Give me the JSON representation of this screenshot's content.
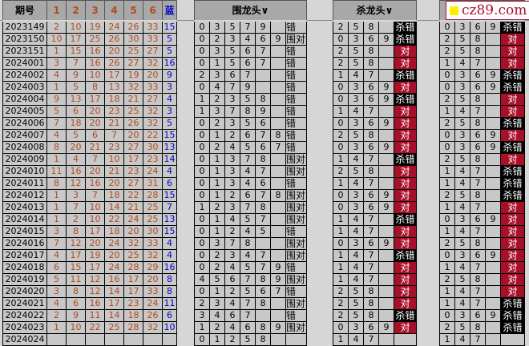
{
  "draw_table": {
    "headers": [
      "期号",
      "1",
      "2",
      "3",
      "4",
      "5",
      "6",
      "蓝"
    ],
    "rows": [
      [
        "2023149",
        "2",
        "10",
        "19",
        "24",
        "26",
        "33",
        "15"
      ],
      [
        "2023150",
        "10",
        "17",
        "25",
        "26",
        "30",
        "33",
        "5"
      ],
      [
        "2023151",
        "1",
        "15",
        "16",
        "20",
        "25",
        "27",
        "5"
      ],
      [
        "2024001",
        "3",
        "7",
        "16",
        "26",
        "27",
        "32",
        "16"
      ],
      [
        "2024002",
        "4",
        "9",
        "10",
        "17",
        "19",
        "20",
        "9"
      ],
      [
        "2024003",
        "1",
        "5",
        "8",
        "13",
        "32",
        "33",
        "3"
      ],
      [
        "2024004",
        "9",
        "13",
        "17",
        "18",
        "21",
        "27",
        "4"
      ],
      [
        "2024005",
        "5",
        "6",
        "20",
        "23",
        "25",
        "32",
        "3"
      ],
      [
        "2024006",
        "7",
        "18",
        "20",
        "21",
        "26",
        "32",
        "5"
      ],
      [
        "2024007",
        "4",
        "5",
        "6",
        "7",
        "20",
        "22",
        "15"
      ],
      [
        "2024008",
        "8",
        "20",
        "21",
        "23",
        "27",
        "30",
        "13"
      ],
      [
        "2024009",
        "1",
        "4",
        "7",
        "10",
        "17",
        "23",
        "14"
      ],
      [
        "2024010",
        "11",
        "16",
        "20",
        "21",
        "23",
        "24",
        "4"
      ],
      [
        "2024011",
        "8",
        "12",
        "16",
        "20",
        "27",
        "31",
        "6"
      ],
      [
        "2024012",
        "1",
        "3",
        "7",
        "18",
        "22",
        "28",
        "15"
      ],
      [
        "2024013",
        "1",
        "7",
        "10",
        "14",
        "21",
        "25",
        "7"
      ],
      [
        "2024014",
        "1",
        "2",
        "10",
        "22",
        "24",
        "25",
        "13"
      ],
      [
        "2024015",
        "3",
        "8",
        "17",
        "18",
        "20",
        "30",
        "15"
      ],
      [
        "2024016",
        "7",
        "12",
        "20",
        "24",
        "32",
        "33",
        "4"
      ],
      [
        "2024017",
        "4",
        "17",
        "19",
        "20",
        "25",
        "32",
        "4"
      ],
      [
        "2024018",
        "6",
        "15",
        "17",
        "24",
        "28",
        "29",
        "16"
      ],
      [
        "2024019",
        "5",
        "11",
        "12",
        "16",
        "17",
        "20",
        "8"
      ],
      [
        "2024020",
        "3",
        "8",
        "12",
        "14",
        "17",
        "33",
        "8"
      ],
      [
        "2024021",
        "4",
        "6",
        "16",
        "17",
        "23",
        "24",
        "11"
      ],
      [
        "2024022",
        "2",
        "9",
        "11",
        "14",
        "18",
        "26",
        "6"
      ],
      [
        "2024023",
        "1",
        "10",
        "22",
        "25",
        "28",
        "32",
        "10"
      ],
      [
        "2024024",
        "",
        "",
        "",
        "",
        "",
        "",
        ""
      ]
    ]
  },
  "wei_long_tou": {
    "title": "围龙头∨",
    "rows": [
      [
        [
          "0",
          "3",
          "5",
          "7",
          "9",
          ""
        ],
        "错"
      ],
      [
        [
          "0",
          "2",
          "3",
          "4",
          "6",
          "9"
        ],
        "围对"
      ],
      [
        [
          "0",
          "3",
          "5",
          "6",
          "7",
          ""
        ],
        "错"
      ],
      [
        [
          "0",
          "1",
          "5",
          "6",
          "7",
          ""
        ],
        "错"
      ],
      [
        [
          "2",
          "3",
          "6",
          "7",
          "",
          ""
        ],
        "错"
      ],
      [
        [
          "0",
          "4",
          "7",
          "9",
          "",
          ""
        ],
        "错"
      ],
      [
        [
          "1",
          "2",
          "3",
          "5",
          "8",
          ""
        ],
        "错"
      ],
      [
        [
          "1",
          "3",
          "7",
          "8",
          "9",
          ""
        ],
        "错"
      ],
      [
        [
          "0",
          "2",
          "3",
          "5",
          "6",
          ""
        ],
        "错"
      ],
      [
        [
          "0",
          "1",
          "2",
          "6",
          "7",
          "8"
        ],
        "错"
      ],
      [
        [
          "0",
          "2",
          "4",
          "5",
          "6",
          "7"
        ],
        "错"
      ],
      [
        [
          "0",
          "1",
          "3",
          "7",
          "8",
          ""
        ],
        "围对"
      ],
      [
        [
          "0",
          "1",
          "3",
          "4",
          "7",
          ""
        ],
        "围对"
      ],
      [
        [
          "0",
          "1",
          "3",
          "4",
          "6",
          ""
        ],
        "错"
      ],
      [
        [
          "0",
          "1",
          "2",
          "6",
          "7",
          "8"
        ],
        "围对"
      ],
      [
        [
          "1",
          "2",
          "3",
          "7",
          "8",
          ""
        ],
        "围对"
      ],
      [
        [
          "0",
          "1",
          "4",
          "5",
          "7",
          ""
        ],
        "围对"
      ],
      [
        [
          "0",
          "1",
          "2",
          "4",
          "5",
          ""
        ],
        "错"
      ],
      [
        [
          "0",
          "3",
          "7",
          "8",
          "",
          ""
        ],
        "围对"
      ],
      [
        [
          "0",
          "2",
          "3",
          "4",
          "7",
          ""
        ],
        "围对"
      ],
      [
        [
          "0",
          "2",
          "4",
          "5",
          "7",
          "9"
        ],
        "错"
      ],
      [
        [
          "4",
          "5",
          "6",
          "7",
          "8",
          "9"
        ],
        "围对"
      ],
      [
        [
          "0",
          "1",
          "2",
          "5",
          "6",
          "7"
        ],
        "错"
      ],
      [
        [
          "2",
          "3",
          "4",
          "7",
          "8",
          ""
        ],
        "围对"
      ],
      [
        [
          "3",
          "4",
          "6",
          "7",
          "",
          ""
        ],
        "错"
      ],
      [
        [
          "1",
          "2",
          "4",
          "6",
          "8",
          "9"
        ],
        "围对"
      ],
      [
        [
          "0",
          "1",
          "2",
          "5",
          "8",
          ""
        ],
        ""
      ]
    ]
  },
  "sha_long_tou": {
    "title": "杀龙头∨",
    "rows": [
      [
        [
          "2",
          "5",
          "8",
          ""
        ],
        "杀错"
      ],
      [
        [
          "0",
          "3",
          "6",
          "9"
        ],
        "杀错"
      ],
      [
        [
          "2",
          "5",
          "8",
          ""
        ],
        "对"
      ],
      [
        [
          "2",
          "5",
          "8",
          ""
        ],
        "对"
      ],
      [
        [
          "1",
          "4",
          "7",
          ""
        ],
        "杀错"
      ],
      [
        [
          "0",
          "3",
          "6",
          "9"
        ],
        "对"
      ],
      [
        [
          "0",
          "3",
          "6",
          "9"
        ],
        "杀错"
      ],
      [
        [
          "1",
          "4",
          "7",
          ""
        ],
        "对"
      ],
      [
        [
          "0",
          "3",
          "6",
          "9"
        ],
        "对"
      ],
      [
        [
          "2",
          "5",
          "8",
          ""
        ],
        "对"
      ],
      [
        [
          "0",
          "3",
          "6",
          "9"
        ],
        "对"
      ],
      [
        [
          "1",
          "4",
          "7",
          ""
        ],
        "杀错"
      ],
      [
        [
          "2",
          "5",
          "8",
          ""
        ],
        "对"
      ],
      [
        [
          "1",
          "4",
          "7",
          ""
        ],
        "对"
      ],
      [
        [
          "0",
          "3",
          "6",
          "9"
        ],
        "对"
      ],
      [
        [
          "0",
          "3",
          "6",
          "9"
        ],
        "对"
      ],
      [
        [
          "1",
          "4",
          "7",
          ""
        ],
        "杀错"
      ],
      [
        [
          "1",
          "4",
          "7",
          ""
        ],
        "对"
      ],
      [
        [
          "0",
          "3",
          "6",
          "9"
        ],
        "对"
      ],
      [
        [
          "1",
          "4",
          "7",
          ""
        ],
        "杀错"
      ],
      [
        [
          "1",
          "4",
          "7",
          ""
        ],
        "对"
      ],
      [
        [
          "1",
          "4",
          "7",
          ""
        ],
        "对"
      ],
      [
        [
          "2",
          "5",
          "8",
          ""
        ],
        "对"
      ],
      [
        [
          "2",
          "5",
          "8",
          ""
        ],
        "对"
      ],
      [
        [
          "2",
          "5",
          "8",
          ""
        ],
        "杀错"
      ],
      [
        [
          "0",
          "3",
          "6",
          "9"
        ],
        "对"
      ],
      [
        [
          "1",
          "4",
          "7",
          ""
        ],
        ""
      ]
    ]
  },
  "fourth_table": {
    "rows": [
      [
        [
          "0",
          "3",
          "6",
          "9"
        ],
        "杀错"
      ],
      [
        [
          "2",
          "5",
          "8",
          ""
        ],
        "对"
      ],
      [
        [
          "2",
          "5",
          "8",
          ""
        ],
        "对"
      ],
      [
        [
          "1",
          "4",
          "7",
          ""
        ],
        "对"
      ],
      [
        [
          "0",
          "3",
          "6",
          "9"
        ],
        "杀错"
      ],
      [
        [
          "0",
          "3",
          "6",
          "9"
        ],
        "杀错"
      ],
      [
        [
          "2",
          "5",
          "8",
          ""
        ],
        "对"
      ],
      [
        [
          "1",
          "4",
          "7",
          ""
        ],
        "对"
      ],
      [
        [
          "2",
          "5",
          "8",
          ""
        ],
        "杀错"
      ],
      [
        [
          "0",
          "3",
          "6",
          "9"
        ],
        "对"
      ],
      [
        [
          "0",
          "3",
          "6",
          "9"
        ],
        "杀错"
      ],
      [
        [
          "2",
          "5",
          "8",
          ""
        ],
        "对"
      ],
      [
        [
          "1",
          "4",
          "7",
          ""
        ],
        "杀错"
      ],
      [
        [
          "1",
          "4",
          "7",
          ""
        ],
        "杀错"
      ],
      [
        [
          "2",
          "5",
          "8",
          ""
        ],
        "杀错"
      ],
      [
        [
          "1",
          "4",
          "7",
          ""
        ],
        "对"
      ],
      [
        [
          "0",
          "3",
          "6",
          "9"
        ],
        "对"
      ],
      [
        [
          "1",
          "4",
          "7",
          ""
        ],
        "对"
      ],
      [
        [
          "2",
          "5",
          "8",
          ""
        ],
        "对"
      ],
      [
        [
          "0",
          "3",
          "6",
          "9"
        ],
        "对"
      ],
      [
        [
          "1",
          "4",
          "7",
          ""
        ],
        "对"
      ],
      [
        [
          "2",
          "5",
          "8",
          ""
        ],
        "对"
      ],
      [
        [
          "1",
          "4",
          "7",
          ""
        ],
        "对"
      ],
      [
        [
          "1",
          "4",
          "7",
          ""
        ],
        "杀错"
      ],
      [
        [
          "0",
          "3",
          "6",
          "9"
        ],
        "杀错"
      ],
      [
        [
          "2",
          "5",
          "8",
          ""
        ],
        "杀错"
      ],
      [
        [
          "1",
          "4",
          "7",
          ""
        ],
        ""
      ]
    ]
  },
  "logo": {
    "text": "cz89.com"
  },
  "colors": {
    "number": "#b04a1a",
    "blue": "#0000cc",
    "hit": "#a8102a",
    "miss": "#000000"
  }
}
